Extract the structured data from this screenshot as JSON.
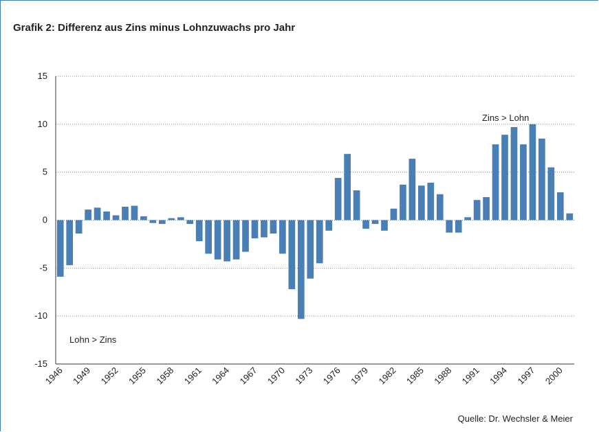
{
  "chart_data": {
    "type": "bar",
    "title": "Grafik 2: Differenz aus Zins minus Lohnzuwachs pro Jahr",
    "categories": [
      "1946",
      null,
      null,
      "1949",
      null,
      null,
      "1952",
      null,
      null,
      "1955",
      null,
      null,
      "1958",
      null,
      null,
      "1961",
      null,
      null,
      "1964",
      null,
      null,
      "1967",
      null,
      null,
      "1970",
      null,
      null,
      "1973",
      null,
      null,
      "1976",
      null,
      null,
      "1979",
      null,
      null,
      "1982",
      null,
      null,
      "1985",
      null,
      null,
      "1988",
      null,
      null,
      "1991",
      null,
      null,
      "1994",
      null,
      null,
      "1997",
      null,
      null,
      "2000",
      null
    ],
    "values": [
      -5.9,
      -4.7,
      -1.4,
      1.1,
      1.3,
      0.9,
      0.5,
      1.4,
      1.5,
      0.4,
      -0.3,
      -0.4,
      0.2,
      0.3,
      -0.4,
      -2.2,
      -3.5,
      -4.1,
      -4.3,
      -4.1,
      -3.3,
      -1.9,
      -1.8,
      -1.4,
      -3.5,
      -7.2,
      -10.3,
      -6.1,
      -4.5,
      -1.1,
      4.4,
      6.9,
      3.1,
      -0.9,
      -0.4,
      -1.1,
      1.2,
      3.7,
      6.4,
      3.6,
      3.9,
      2.7,
      -1.3,
      -1.3,
      0.3,
      2.1,
      2.4,
      7.9,
      8.9,
      9.7,
      7.9,
      10.0,
      8.5,
      5.5,
      2.9,
      0.7
    ],
    "color": "#4a7fb5",
    "ylim": [
      -15,
      15
    ],
    "yticks": [
      -15,
      -10,
      -5,
      0,
      5,
      10,
      15
    ],
    "grid": true,
    "annotations": [
      "Zins > Lohn",
      "Lohn > Zins"
    ],
    "source": "Quelle: Dr. Wechsler & Meier"
  }
}
